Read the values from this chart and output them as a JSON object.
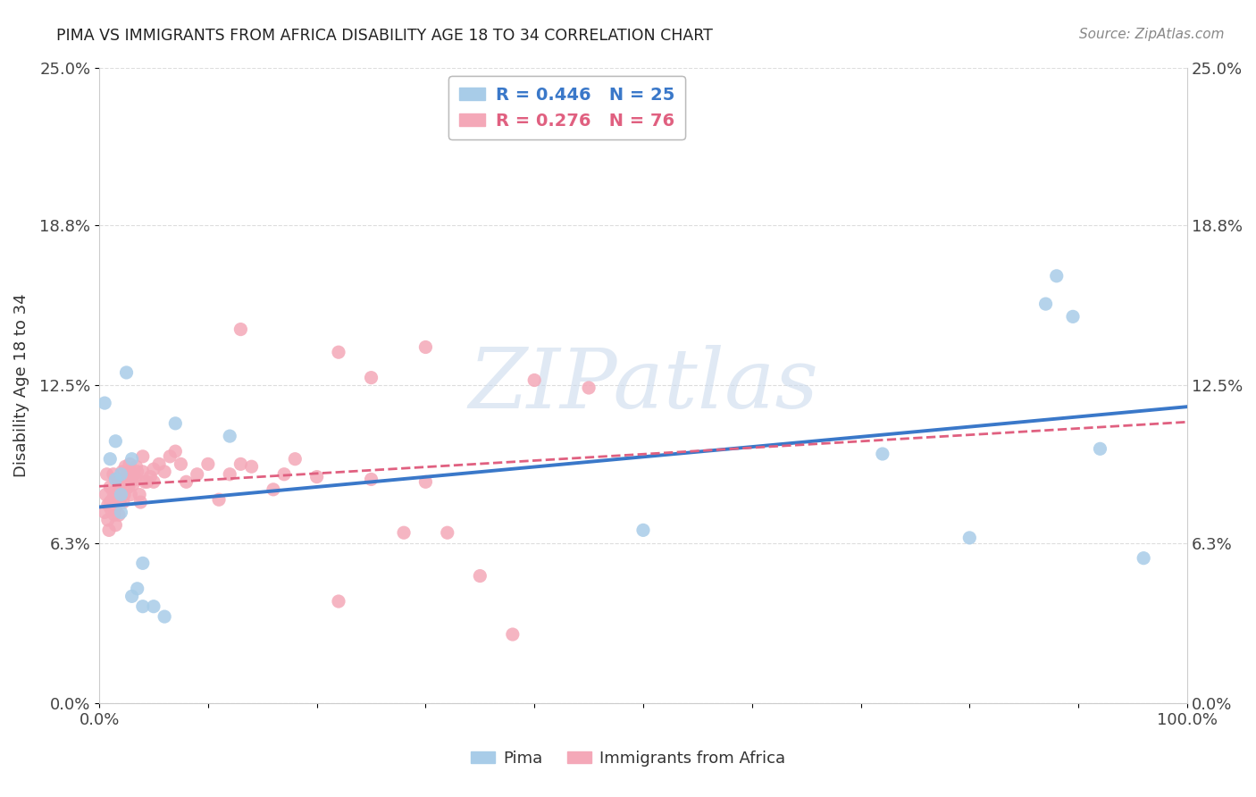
{
  "title": "PIMA VS IMMIGRANTS FROM AFRICA DISABILITY AGE 18 TO 34 CORRELATION CHART",
  "source": "Source: ZipAtlas.com",
  "ylabel": "Disability Age 18 to 34",
  "xlim": [
    0.0,
    1.0
  ],
  "ylim": [
    0.0,
    0.25
  ],
  "yticks": [
    0.0,
    0.063,
    0.125,
    0.188,
    0.25
  ],
  "ytick_labels": [
    "0.0%",
    "6.3%",
    "12.5%",
    "18.8%",
    "25.0%"
  ],
  "xtick_labels": [
    "0.0%",
    "",
    "",
    "",
    "",
    "",
    "",
    "",
    "",
    "",
    "100.0%"
  ],
  "watermark_zip": "ZIP",
  "watermark_atlas": "atlas",
  "legend1_R": "0.446",
  "legend1_N": "25",
  "legend2_R": "0.276",
  "legend2_N": "76",
  "blue_color": "#a8cce8",
  "pink_color": "#f4a8b8",
  "line_blue": "#3a78c9",
  "line_pink_dashed": "#e06080",
  "background_color": "#ffffff",
  "grid_color": "#dddddd",
  "pima_x": [
    0.005,
    0.01,
    0.015,
    0.015,
    0.02,
    0.02,
    0.02,
    0.025,
    0.03,
    0.03,
    0.04,
    0.05,
    0.07,
    0.5,
    0.72,
    0.8,
    0.87,
    0.88,
    0.895,
    0.92,
    0.96,
    0.06,
    0.12,
    0.035,
    0.04
  ],
  "pima_y": [
    0.118,
    0.096,
    0.103,
    0.088,
    0.075,
    0.09,
    0.082,
    0.13,
    0.096,
    0.042,
    0.055,
    0.038,
    0.11,
    0.068,
    0.098,
    0.065,
    0.157,
    0.168,
    0.152,
    0.1,
    0.057,
    0.034,
    0.105,
    0.045,
    0.038
  ],
  "africa_x": [
    0.005,
    0.006,
    0.007,
    0.008,
    0.008,
    0.009,
    0.01,
    0.01,
    0.011,
    0.012,
    0.013,
    0.013,
    0.014,
    0.015,
    0.015,
    0.016,
    0.017,
    0.018,
    0.019,
    0.02,
    0.02,
    0.021,
    0.022,
    0.022,
    0.023,
    0.024,
    0.025,
    0.026,
    0.027,
    0.028,
    0.028,
    0.029,
    0.03,
    0.031,
    0.032,
    0.033,
    0.034,
    0.035,
    0.037,
    0.038,
    0.04,
    0.04,
    0.042,
    0.044,
    0.047,
    0.05,
    0.05,
    0.055,
    0.06,
    0.065,
    0.07,
    0.075,
    0.08,
    0.09,
    0.1,
    0.11,
    0.12,
    0.13,
    0.14,
    0.16,
    0.17,
    0.18,
    0.2,
    0.22,
    0.25,
    0.28,
    0.3,
    0.32,
    0.35,
    0.38,
    0.4,
    0.45,
    0.22,
    0.3,
    0.25,
    0.13
  ],
  "africa_y": [
    0.075,
    0.082,
    0.09,
    0.078,
    0.072,
    0.068,
    0.085,
    0.079,
    0.076,
    0.08,
    0.083,
    0.09,
    0.074,
    0.07,
    0.077,
    0.082,
    0.088,
    0.074,
    0.079,
    0.086,
    0.083,
    0.091,
    0.087,
    0.079,
    0.082,
    0.093,
    0.089,
    0.091,
    0.085,
    0.094,
    0.088,
    0.082,
    0.088,
    0.086,
    0.09,
    0.088,
    0.093,
    0.091,
    0.082,
    0.079,
    0.091,
    0.097,
    0.087,
    0.087,
    0.089,
    0.092,
    0.087,
    0.094,
    0.091,
    0.097,
    0.099,
    0.094,
    0.087,
    0.09,
    0.094,
    0.08,
    0.09,
    0.094,
    0.093,
    0.084,
    0.09,
    0.096,
    0.089,
    0.04,
    0.088,
    0.067,
    0.087,
    0.067,
    0.05,
    0.027,
    0.127,
    0.124,
    0.138,
    0.14,
    0.128,
    0.147
  ]
}
